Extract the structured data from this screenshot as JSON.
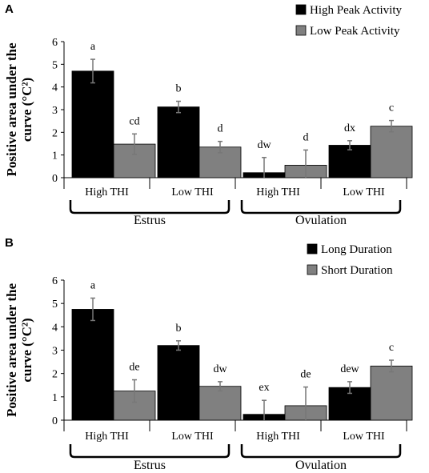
{
  "chart_data": [
    {
      "panel_label": "A",
      "type": "bar",
      "ylabel_line1": "Positive area under the",
      "ylabel_line2": "curve (°C²)",
      "ylim": [
        0,
        6
      ],
      "yticks": [
        "0",
        "1",
        "2",
        "3",
        "4",
        "5",
        "6"
      ],
      "legend_position": "top-right",
      "groups": [
        {
          "name": "Estrus",
          "categories": [
            "High THI",
            "Low THI"
          ]
        },
        {
          "name": "Ovulation",
          "categories": [
            "High THI",
            "Low THI"
          ]
        }
      ],
      "categories": [
        "High THI",
        "Low THI",
        "High THI",
        "Low THI"
      ],
      "series": [
        {
          "name": "High Peak Activity",
          "color": "#000000",
          "values": [
            4.7,
            3.12,
            0.22,
            1.43
          ],
          "errors": [
            0.52,
            0.25,
            0.67,
            0.2
          ],
          "letters": [
            "a",
            "b",
            "dw",
            "dx"
          ]
        },
        {
          "name": "Low Peak Activity",
          "color": "#808080",
          "values": [
            1.48,
            1.35,
            0.55,
            2.27
          ],
          "errors": [
            0.45,
            0.25,
            0.67,
            0.25
          ],
          "letters": [
            "cd",
            "d",
            "d",
            "c"
          ]
        }
      ]
    },
    {
      "panel_label": "B",
      "type": "bar",
      "ylabel_line1": "Positive area under the",
      "ylabel_line2": "curve (°C²)",
      "ylim": [
        0,
        6
      ],
      "yticks": [
        "0",
        "1",
        "2",
        "3",
        "4",
        "5",
        "6"
      ],
      "legend_position": "top-right",
      "groups": [
        {
          "name": "Estrus",
          "categories": [
            "High THI",
            "Low THI"
          ]
        },
        {
          "name": "Ovulation",
          "categories": [
            "High THI",
            "Low THI"
          ]
        }
      ],
      "categories": [
        "High THI",
        "Low THI",
        "High THI",
        "Low THI"
      ],
      "series": [
        {
          "name": "Long Duration",
          "color": "#000000",
          "values": [
            4.75,
            3.2,
            0.25,
            1.4
          ],
          "errors": [
            0.48,
            0.2,
            0.6,
            0.25
          ],
          "letters": [
            "a",
            "b",
            "ex",
            "dew"
          ]
        },
        {
          "name": "Short Duration",
          "color": "#808080",
          "values": [
            1.25,
            1.45,
            0.62,
            2.32
          ],
          "errors": [
            0.48,
            0.2,
            0.8,
            0.25
          ],
          "letters": [
            "de",
            "dw",
            "de",
            "c"
          ]
        }
      ]
    }
  ]
}
